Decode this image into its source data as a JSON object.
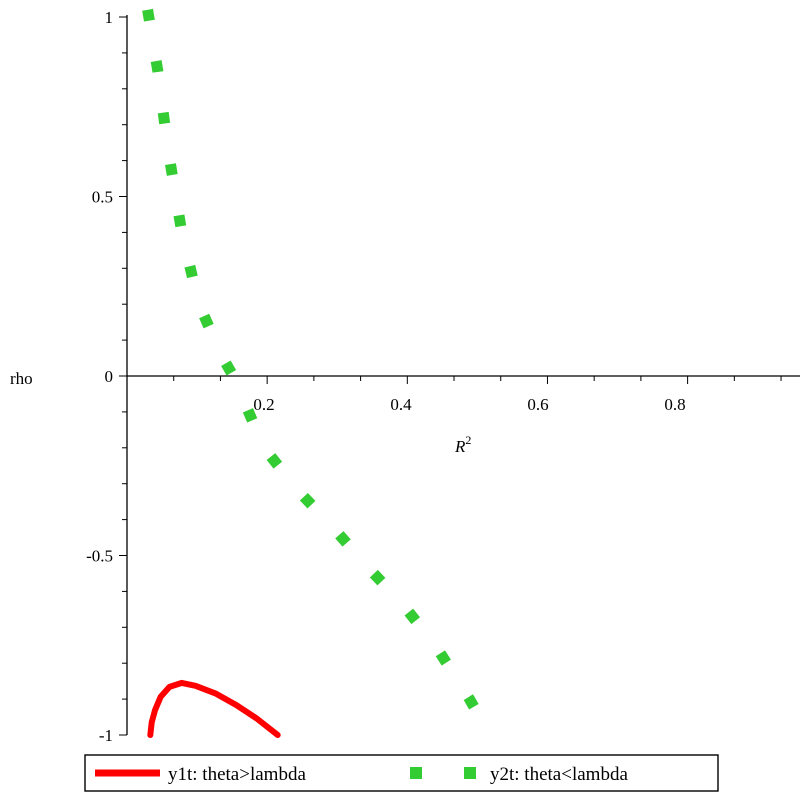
{
  "chart_data": {
    "type": "line",
    "xlabel": "R",
    "xlabel_superscript": "2",
    "ylabel": "rho",
    "xlim": [
      0,
      0.98
    ],
    "ylim": [
      -1,
      1
    ],
    "x_ticks": [
      {
        "value": 0.2,
        "label": "0.2"
      },
      {
        "value": 0.4,
        "label": "0.4"
      },
      {
        "value": 0.6,
        "label": "0.6"
      },
      {
        "value": 0.8,
        "label": "0.8"
      }
    ],
    "y_ticks": [
      {
        "value": 1,
        "label": "1"
      },
      {
        "value": 0.5,
        "label": "0.5"
      },
      {
        "value": 0,
        "label": "0"
      },
      {
        "value": -0.5,
        "label": "-0.5"
      },
      {
        "value": -1,
        "label": "-1"
      }
    ],
    "grid": false,
    "legend_position": "bottom",
    "series": [
      {
        "name": "y1t: theta>lambda",
        "color": "#ff0000",
        "style": "solid",
        "points": [
          [
            0.034,
            -1.0
          ],
          [
            0.036,
            -0.965
          ],
          [
            0.041,
            -0.93
          ],
          [
            0.049,
            -0.894
          ],
          [
            0.062,
            -0.866
          ],
          [
            0.08,
            -0.855
          ],
          [
            0.1,
            -0.863
          ],
          [
            0.13,
            -0.885
          ],
          [
            0.16,
            -0.917
          ],
          [
            0.19,
            -0.955
          ],
          [
            0.22,
            -1.0
          ]
        ]
      },
      {
        "name": "y2t: theta<lambda",
        "color": "#33cc33",
        "style": "dotted",
        "points": [
          [
            0.03,
            1.02
          ],
          [
            0.045,
            0.85
          ],
          [
            0.06,
            0.63
          ],
          [
            0.08,
            0.4
          ],
          [
            0.105,
            0.2
          ],
          [
            0.14,
            0.05
          ],
          [
            0.155,
            0.0
          ],
          [
            0.2,
            -0.2
          ],
          [
            0.25,
            -0.32
          ],
          [
            0.3,
            -0.42
          ],
          [
            0.35,
            -0.53
          ],
          [
            0.4,
            -0.63
          ],
          [
            0.45,
            -0.75
          ],
          [
            0.5,
            -0.9
          ],
          [
            0.53,
            -1.0
          ]
        ]
      }
    ]
  }
}
